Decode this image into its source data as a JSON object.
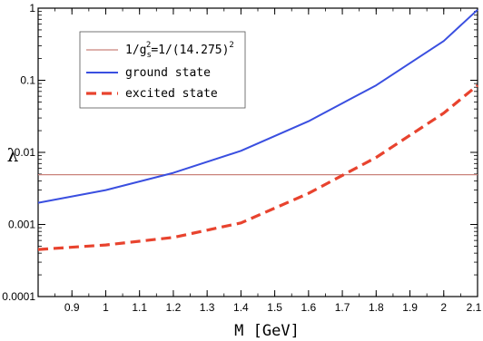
{
  "chart_data": {
    "type": "line",
    "xlabel": "M  [GeV]",
    "ylabel": "λ",
    "xlim": [
      0.8,
      2.1
    ],
    "ylim": [
      0.0001,
      1
    ],
    "yscale": "log",
    "x_ticks": [
      0.9,
      1,
      1.1,
      1.2,
      1.3,
      1.4,
      1.5,
      1.6,
      1.7,
      1.8,
      1.9,
      2,
      2.1
    ],
    "x_tick_labels": [
      "0.9",
      "1",
      "1.1",
      "1.2",
      "1.3",
      "1.4",
      "1.5",
      "1.6",
      "1.7",
      "1.8",
      "1.9",
      "2",
      "2.1"
    ],
    "y_ticks": [
      0.0001,
      0.001,
      0.01,
      0.1,
      1
    ],
    "y_tick_labels": [
      "0.0001",
      "0.001",
      "0.01",
      "0.1",
      "1"
    ],
    "grid": false,
    "legend_position": "top-left",
    "legend": {
      "coupling": {
        "prefix": "1/g",
        "sub": "s",
        "sup1": "2",
        "middle": "=1/(14.275)",
        "sup2": "2"
      },
      "ground": "ground state",
      "excited": "excited state"
    },
    "series": [
      {
        "name": "1/g_s^2=1/(14.275)^2",
        "color": "#c9827a",
        "style": "solid",
        "x": [
          0.8,
          2.1
        ],
        "values": [
          0.0049,
          0.0049
        ]
      },
      {
        "name": "ground state",
        "color": "#3a4fe0",
        "style": "solid",
        "x": [
          0.8,
          1.0,
          1.2,
          1.4,
          1.6,
          1.8,
          2.0,
          2.1
        ],
        "values": [
          0.002,
          0.003,
          0.0052,
          0.0105,
          0.027,
          0.085,
          0.35,
          0.95
        ]
      },
      {
        "name": "excited state",
        "color": "#e8432e",
        "style": "dashed",
        "x": [
          0.8,
          1.0,
          1.2,
          1.4,
          1.6,
          1.8,
          2.0,
          2.1
        ],
        "values": [
          0.00045,
          0.00052,
          0.00066,
          0.00105,
          0.0027,
          0.0085,
          0.035,
          0.085
        ]
      }
    ]
  }
}
